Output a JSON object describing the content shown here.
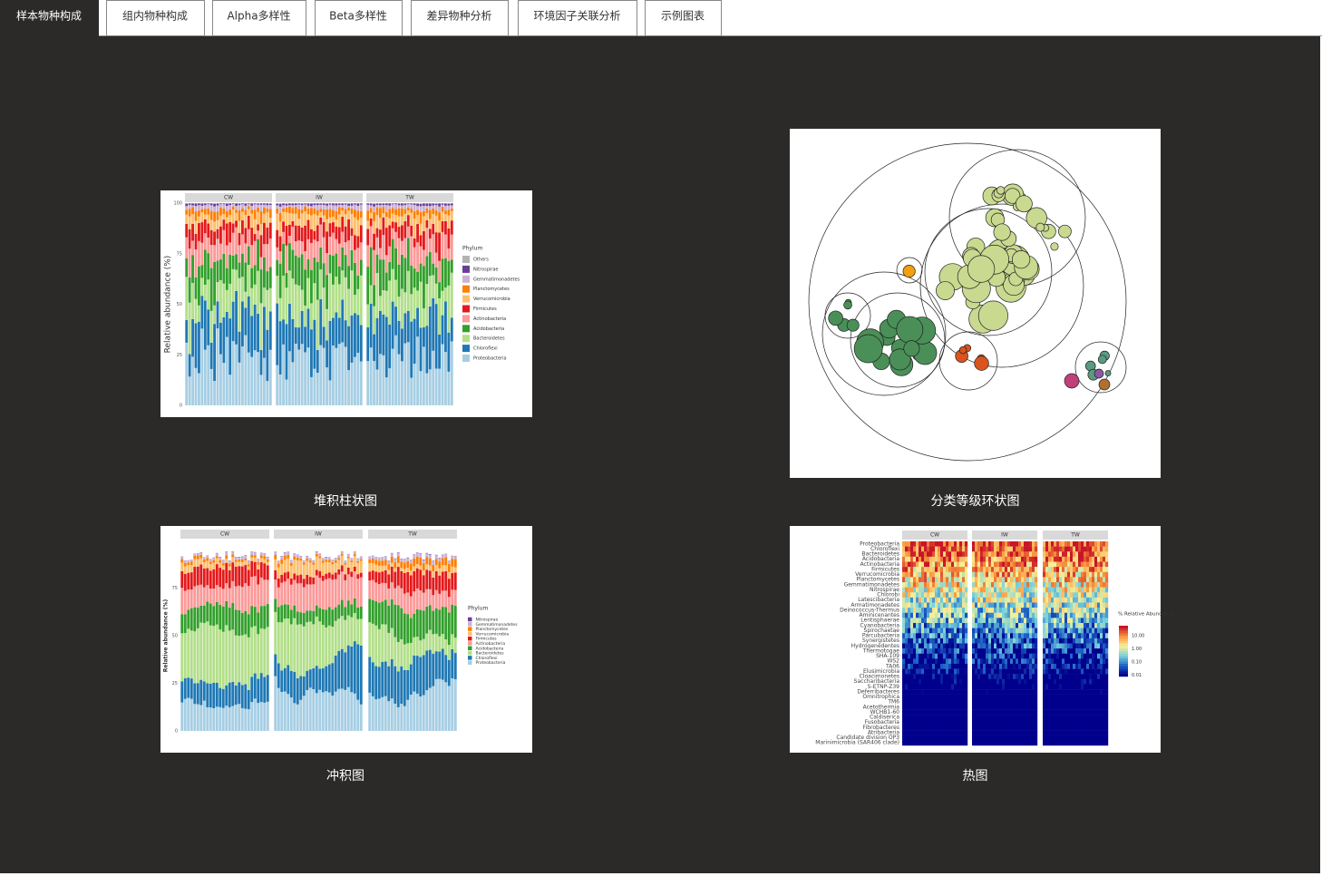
{
  "tabs": [
    {
      "label": "样本物种构成",
      "active": true
    },
    {
      "label": "组内物种构成"
    },
    {
      "label": "Alpha多样性"
    },
    {
      "label": "Beta多样性"
    },
    {
      "label": "差异物种分析"
    },
    {
      "label": "环境因子关联分析"
    },
    {
      "label": "示例图表"
    }
  ],
  "gallery": [
    {
      "caption": "堆积柱状图",
      "facets": [
        "CW",
        "IW",
        "TW"
      ],
      "y_label": "Relative abundance (%)",
      "yticks": [
        0,
        25,
        50,
        75,
        100
      ],
      "legend_title": "Phylum",
      "legend": [
        {
          "name": "Others",
          "color": "#b3b3b3"
        },
        {
          "name": "Nitrospirae",
          "color": "#6a3d9a"
        },
        {
          "name": "Gemmatimonadetes",
          "color": "#cab2d6"
        },
        {
          "name": "Planctomycetes",
          "color": "#ff7f00"
        },
        {
          "name": "Verrucomicrobia",
          "color": "#fdbf6f"
        },
        {
          "name": "Firmicutes",
          "color": "#e31a1c"
        },
        {
          "name": "Actinobacteria",
          "color": "#fb9a99"
        },
        {
          "name": "Acidobacteria",
          "color": "#33a02c"
        },
        {
          "name": "Bacteroidetes",
          "color": "#b2df8a"
        },
        {
          "name": "Chloroflexi",
          "color": "#1f78b4"
        },
        {
          "name": "Proteobacteria",
          "color": "#a6cee3"
        }
      ]
    },
    {
      "caption": "分类等级环状图"
    },
    {
      "caption": "冲积图",
      "facets": [
        "CW",
        "IW",
        "TW"
      ],
      "y_label": "Relative abundance (%)",
      "yticks": [
        0,
        25,
        50,
        75
      ],
      "legend_title": "Phylum",
      "legend": [
        {
          "name": "Nitrospirae",
          "color": "#6a3d9a"
        },
        {
          "name": "Gemmatimonadetes",
          "color": "#cab2d6"
        },
        {
          "name": "Planctomycetes",
          "color": "#ff7f00"
        },
        {
          "name": "Verrucomicrobia",
          "color": "#fdbf6f"
        },
        {
          "name": "Firmicutes",
          "color": "#e31a1c"
        },
        {
          "name": "Actinobacteria",
          "color": "#fb9a99"
        },
        {
          "name": "Acidobacteria",
          "color": "#33a02c"
        },
        {
          "name": "Bacteroidetes",
          "color": "#b2df8a"
        },
        {
          "name": "Chloroflexi",
          "color": "#1f78b4"
        },
        {
          "name": "Proteobacteria",
          "color": "#a6cee3"
        }
      ]
    },
    {
      "caption": "热图",
      "facets": [
        "CW",
        "IW",
        "TW"
      ],
      "legend_title": "% Relative Abundance",
      "legend_ticks": [
        {
          "value": 10,
          "label": "10.00"
        },
        {
          "value": 1,
          "label": "1.00"
        },
        {
          "value": 0.1,
          "label": "0.10"
        },
        {
          "value": 0.01,
          "label": "0.01"
        }
      ],
      "rows": [
        "Proteobacteria",
        "Chloroflexi",
        "Bacteroidetes",
        "Acidobacteria",
        "Actinobacteria",
        "Firmicutes",
        "Verrucomicrobia",
        "Planctomycetes",
        "Gemmatimonadetes",
        "Nitrospirae",
        "Chlorobi",
        "Latescibacteria",
        "Armatimonadetes",
        "Deinococcus-Thermus",
        "Aminicenantes",
        "Lentisphaerae",
        "Cyanobacteria",
        "Spirochaetae",
        "Parcubacteria",
        "Synergistetes",
        "Hydrogenedentes",
        "Thermotogae",
        "SHA-109",
        "WS2",
        "TA06",
        "Elusimicrobia",
        "Cloacimonetes",
        "Saccharibacteria",
        "S-ETNP-Z39",
        "Deferribacteres",
        "Omnitrophica",
        "TM6",
        "Acetothermia",
        "WCHB1-60",
        "Caldiserica",
        "Fusobacteria",
        "Fibrobacteres",
        "Atribacteria",
        "Candidate division OP3",
        "Marinimicrobia (SAR406 clade)"
      ]
    }
  ]
}
